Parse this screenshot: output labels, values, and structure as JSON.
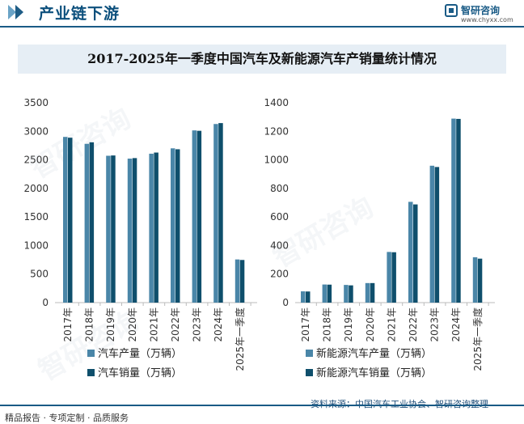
{
  "header": {
    "title": "产业链下游",
    "brand_name": "智研咨询",
    "brand_url": "www.chyxx.com"
  },
  "footer": {
    "left_text": "精品报告 · 专项定制 · 品质服务",
    "source": "资料来源：中国汽车工业协会、智研咨询整理"
  },
  "colors": {
    "series_light": "#4a86a8",
    "series_dark": "#0f4f6c",
    "accent": "#1a5b86"
  },
  "chart_data": [
    {
      "type": "bar",
      "title": "2017-2025年一季度中国汽车及新能源汽车产销量统计情况",
      "categories": [
        "2017年",
        "2018年",
        "2019年",
        "2020年",
        "2021年",
        "2022年",
        "2023年",
        "2024年",
        "2025年一季度"
      ],
      "ylim": [
        0,
        3500
      ],
      "yticks": [
        "0",
        "500",
        "1000",
        "1500",
        "2000",
        "2500",
        "3000",
        "3500"
      ],
      "series": [
        {
          "name": "汽车产量（万辆）",
          "values": [
            2902,
            2781,
            2572,
            2522,
            2608,
            2702,
            3016,
            3128,
            756
          ]
        },
        {
          "name": "汽车销量（万辆）",
          "values": [
            2888,
            2808,
            2577,
            2531,
            2628,
            2686,
            3009,
            3144,
            747
          ]
        }
      ]
    },
    {
      "type": "bar",
      "categories": [
        "2017年",
        "2018年",
        "2019年",
        "2020年",
        "2021年",
        "2022年",
        "2023年",
        "2024年",
        "2025年一季度"
      ],
      "ylim": [
        0,
        1400
      ],
      "yticks": [
        "0",
        "200",
        "400",
        "600",
        "800",
        "1000",
        "1200",
        "1400"
      ],
      "series": [
        {
          "name": "新能源汽车产量（万辆）",
          "values": [
            79,
            127,
            124,
            137,
            355,
            706,
            959,
            1289,
            318
          ]
        },
        {
          "name": "新能源汽车销量（万辆）",
          "values": [
            78,
            126,
            121,
            137,
            353,
            688,
            950,
            1287,
            308
          ]
        }
      ]
    }
  ]
}
